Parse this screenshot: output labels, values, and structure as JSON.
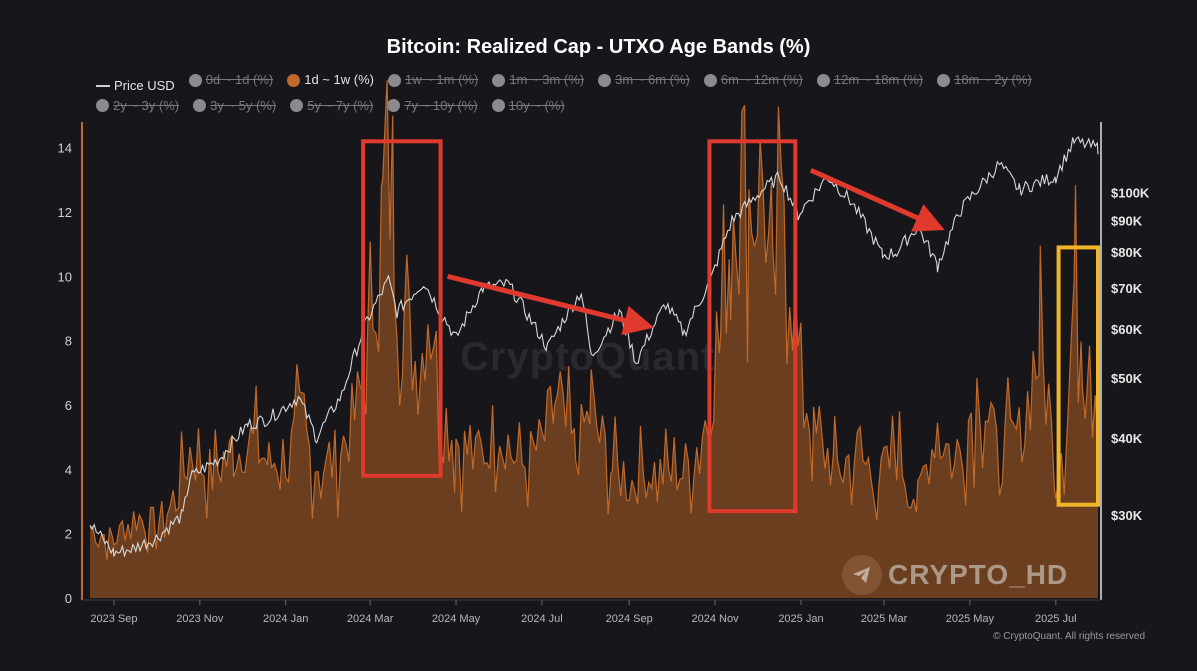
{
  "title": "Bitcoin: Realized Cap - UTXO Age Bands (%)",
  "legend": [
    {
      "label": "Price USD",
      "kind": "line",
      "active": true
    },
    {
      "label": "0d ~ 1d (%)",
      "kind": "dot",
      "active": false
    },
    {
      "label": "1d ~ 1w (%)",
      "kind": "dot",
      "active": true,
      "color": "#c0692a"
    },
    {
      "label": "1w ~ 1m (%)",
      "kind": "dot",
      "active": false
    },
    {
      "label": "1m ~ 3m (%)",
      "kind": "dot",
      "active": false
    },
    {
      "label": "3m ~ 6m (%)",
      "kind": "dot",
      "active": false
    },
    {
      "label": "6m ~ 12m (%)",
      "kind": "dot",
      "active": false
    },
    {
      "label": "12m ~ 18m (%)",
      "kind": "dot",
      "active": false
    },
    {
      "label": "18m ~ 2y (%)",
      "kind": "dot",
      "active": false
    },
    {
      "label": "2y ~ 3y (%)",
      "kind": "dot",
      "active": false
    },
    {
      "label": "3y ~ 5y (%)",
      "kind": "dot",
      "active": false
    },
    {
      "label": "5y ~ 7y (%)",
      "kind": "dot",
      "active": false
    },
    {
      "label": "7y ~ 10y (%)",
      "kind": "dot",
      "active": false
    },
    {
      "label": "10y ~ (%)",
      "kind": "dot",
      "active": false
    }
  ],
  "watermark": "CryptoQuant",
  "brand": "CRYPTO_HD",
  "copyright": "© CryptoQuant. All rights reserved",
  "colors": {
    "background": "#17161b",
    "area_fill": "#7a4520",
    "area_line": "#c0692a",
    "price_line": "#d8d8d8",
    "highlight_red": "#e03a2e",
    "highlight_yellow": "#f0b429"
  },
  "chart_data": {
    "type": "area",
    "x_range": [
      "2023-08-15",
      "2025-07-31"
    ],
    "x_tick_labels": [
      "2023 Sep",
      "2023 Nov",
      "2024 Jan",
      "2024 Mar",
      "2024 May",
      "2024 Jul",
      "2024 Sep",
      "2024 Nov",
      "2025 Jan",
      "2025 Mar",
      "2025 May",
      "2025 Jul"
    ],
    "y_left": {
      "ticks": [
        0,
        2,
        4,
        6,
        8,
        10,
        12,
        14
      ],
      "range": [
        0,
        14.8
      ]
    },
    "y_right": {
      "scale": "log",
      "tick_labels": [
        "$100K",
        "$90K",
        "$80K",
        "$70K",
        "$60K",
        "$50K",
        "$40K",
        "$30K"
      ],
      "range": [
        22000,
        130000
      ]
    },
    "series": [
      {
        "name": "1d ~ 1w (%)",
        "axis": "left",
        "type": "area",
        "points": [
          [
            "2023-08-15",
            2.2
          ],
          [
            "2023-09-01",
            1.8
          ],
          [
            "2023-09-15",
            2.5
          ],
          [
            "2023-10-01",
            2.3
          ],
          [
            "2023-10-15",
            3.0
          ],
          [
            "2023-10-25",
            4.5
          ],
          [
            "2023-11-10",
            3.8
          ],
          [
            "2023-11-25",
            4.5
          ],
          [
            "2023-12-05",
            5.0
          ],
          [
            "2023-12-20",
            4.2
          ],
          [
            "2024-01-05",
            4.6
          ],
          [
            "2024-01-12",
            5.5
          ],
          [
            "2024-01-20",
            4.3
          ],
          [
            "2024-02-01",
            4.0
          ],
          [
            "2024-02-15",
            5.2
          ],
          [
            "2024-02-28",
            7.0
          ],
          [
            "2024-03-05",
            10.5
          ],
          [
            "2024-03-10",
            12.0
          ],
          [
            "2024-03-13",
            13.8
          ],
          [
            "2024-03-18",
            11.0
          ],
          [
            "2024-03-25",
            8.5
          ],
          [
            "2024-04-05",
            7.0
          ],
          [
            "2024-04-13",
            9.8
          ],
          [
            "2024-04-20",
            5.5
          ],
          [
            "2024-05-01",
            5.0
          ],
          [
            "2024-05-15",
            4.2
          ],
          [
            "2024-06-01",
            5.5
          ],
          [
            "2024-06-15",
            4.0
          ],
          [
            "2024-07-01",
            4.8
          ],
          [
            "2024-07-10",
            6.0
          ],
          [
            "2024-07-25",
            4.5
          ],
          [
            "2024-08-05",
            5.8
          ],
          [
            "2024-08-20",
            4.0
          ],
          [
            "2024-09-01",
            3.5
          ],
          [
            "2024-09-15",
            4.0
          ],
          [
            "2024-10-01",
            3.8
          ],
          [
            "2024-10-15",
            4.2
          ],
          [
            "2024-10-25",
            5.5
          ],
          [
            "2024-11-05",
            8.0
          ],
          [
            "2024-11-12",
            11.5
          ],
          [
            "2024-11-18",
            14.2
          ],
          [
            "2024-11-25",
            12.5
          ],
          [
            "2024-12-05",
            13.0
          ],
          [
            "2024-12-12",
            9.0
          ],
          [
            "2024-12-20",
            12.8
          ],
          [
            "2024-12-28",
            8.0
          ],
          [
            "2025-01-10",
            5.0
          ],
          [
            "2025-01-25",
            4.0
          ],
          [
            "2025-02-10",
            4.5
          ],
          [
            "2025-02-25",
            3.5
          ],
          [
            "2025-03-10",
            4.5
          ],
          [
            "2025-03-25",
            3.0
          ],
          [
            "2025-04-08",
            5.5
          ],
          [
            "2025-04-20",
            4.0
          ],
          [
            "2025-05-08",
            6.8
          ],
          [
            "2025-05-20",
            4.5
          ],
          [
            "2025-06-05",
            5.0
          ],
          [
            "2025-06-20",
            7.8
          ],
          [
            "2025-07-01",
            4.0
          ],
          [
            "2025-07-10",
            6.0
          ],
          [
            "2025-07-15",
            10.7
          ],
          [
            "2025-07-20",
            8.0
          ],
          [
            "2025-07-25",
            8.5
          ],
          [
            "2025-07-31",
            6.0
          ]
        ]
      },
      {
        "name": "Price USD",
        "axis": "right",
        "type": "line",
        "points": [
          [
            "2023-08-15",
            29000
          ],
          [
            "2023-09-01",
            26000
          ],
          [
            "2023-09-15",
            26500
          ],
          [
            "2023-10-01",
            27500
          ],
          [
            "2023-10-20",
            30000
          ],
          [
            "2023-10-25",
            34500
          ],
          [
            "2023-11-15",
            37000
          ],
          [
            "2023-12-05",
            42000
          ],
          [
            "2023-12-20",
            43000
          ],
          [
            "2024-01-10",
            46500
          ],
          [
            "2024-01-23",
            40000
          ],
          [
            "2024-02-10",
            47000
          ],
          [
            "2024-02-28",
            62000
          ],
          [
            "2024-03-14",
            72000
          ],
          [
            "2024-03-20",
            64000
          ],
          [
            "2024-04-08",
            71500
          ],
          [
            "2024-04-20",
            64000
          ],
          [
            "2024-05-01",
            58000
          ],
          [
            "2024-05-20",
            70000
          ],
          [
            "2024-06-07",
            71000
          ],
          [
            "2024-06-25",
            61000
          ],
          [
            "2024-07-05",
            56000
          ],
          [
            "2024-07-29",
            69000
          ],
          [
            "2024-08-05",
            54000
          ],
          [
            "2024-08-25",
            64000
          ],
          [
            "2024-09-06",
            53000
          ],
          [
            "2024-09-27",
            66000
          ],
          [
            "2024-10-10",
            59000
          ],
          [
            "2024-10-29",
            72000
          ],
          [
            "2024-11-13",
            90000
          ],
          [
            "2024-12-05",
            101000
          ],
          [
            "2024-12-17",
            106000
          ],
          [
            "2024-12-30",
            92000
          ],
          [
            "2025-01-20",
            106000
          ],
          [
            "2025-02-05",
            97000
          ],
          [
            "2025-02-28",
            79000
          ],
          [
            "2025-03-10",
            80000
          ],
          [
            "2025-03-25",
            88000
          ],
          [
            "2025-04-08",
            76000
          ],
          [
            "2025-04-25",
            94000
          ],
          [
            "2025-05-22",
            111000
          ],
          [
            "2025-06-05",
            101000
          ],
          [
            "2025-06-20",
            104000
          ],
          [
            "2025-07-01",
            106000
          ],
          [
            "2025-07-14",
            121000
          ],
          [
            "2025-07-31",
            118000
          ]
        ]
      }
    ],
    "annotations": {
      "highlight_boxes": [
        {
          "color": "red",
          "x": [
            "2024-02-25",
            "2024-04-20"
          ],
          "y": [
            3.8,
            14.2
          ]
        },
        {
          "color": "red",
          "x": [
            "2024-10-28",
            "2024-12-28"
          ],
          "y": [
            2.7,
            14.2
          ]
        },
        {
          "color": "yellow",
          "x": [
            "2025-07-03",
            "2025-07-31"
          ],
          "y": [
            2.9,
            10.9
          ]
        }
      ],
      "arrows": [
        {
          "from": [
            "2024-04-25",
            10.0
          ],
          "to": [
            "2024-09-10",
            8.5
          ]
        },
        {
          "from": [
            "2025-01-08",
            13.3
          ],
          "to": [
            "2025-04-05",
            11.6
          ]
        }
      ]
    }
  }
}
